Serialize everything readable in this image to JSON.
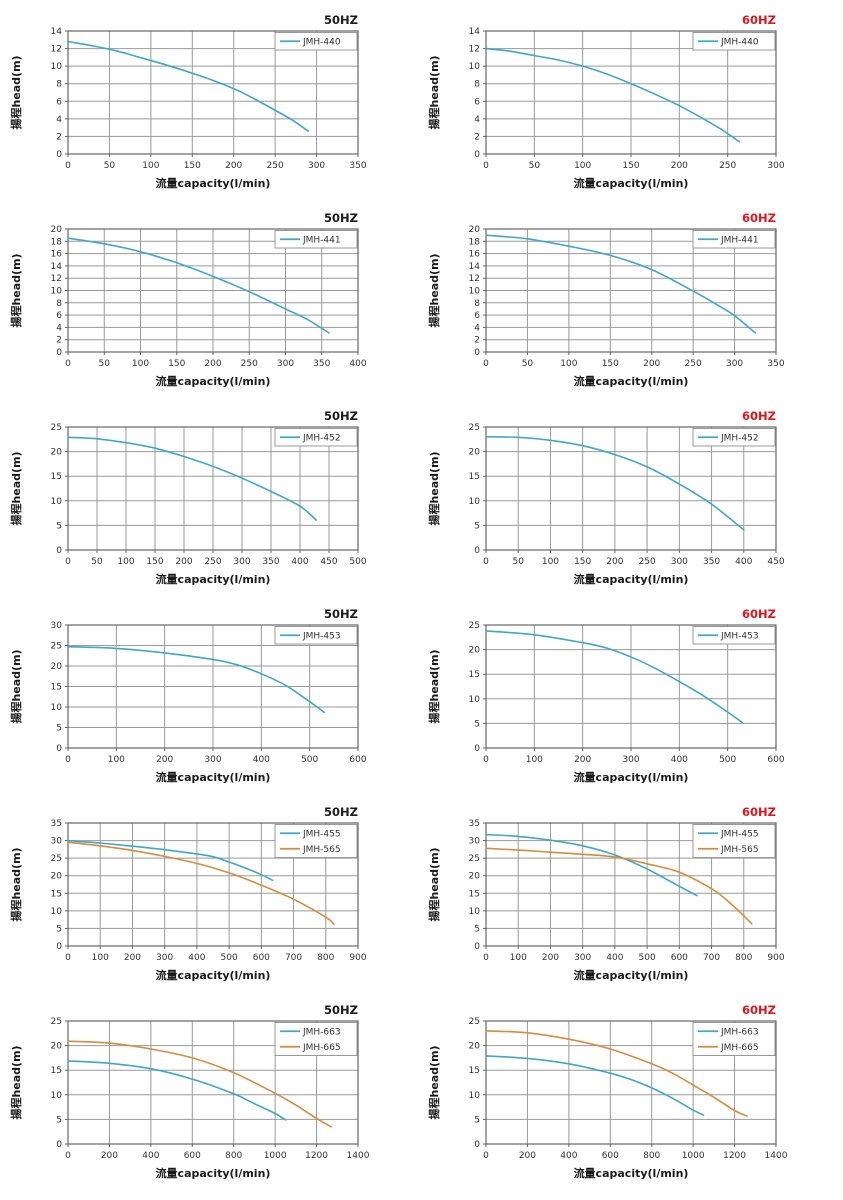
{
  "page": {
    "background": "#ffffff"
  },
  "colors": {
    "series_blue": "#3fa7c9",
    "series_orange": "#d98a3c",
    "title_50hz": "#1a1a1a",
    "title_60hz": "#e2151d",
    "grid_line": "#9a9a9a",
    "plot_border": "#666666",
    "tick_text": "#333333",
    "label_text": "#1a1a1a",
    "legend_border": "#999999",
    "legend_bg": "#ffffff"
  },
  "axis_labels": {
    "xlabel": "流量capacity(l/min)",
    "ylabel": "揚程head(m)"
  },
  "chart_data": [
    {
      "id": "50hz-jmh-440",
      "type": "line",
      "title": "50HZ",
      "title_color": "#1a1a1a",
      "xlabel": "流量capacity(l/min)",
      "ylabel": "揚程head(m)",
      "xlim": [
        0,
        350
      ],
      "xtick_step": 50,
      "ylim": [
        0,
        14
      ],
      "ytick_step": 2,
      "grid": true,
      "legend_position": "top-right",
      "series": [
        {
          "name": "JMH-440",
          "color": "#3fa7c9",
          "points": [
            [
              0,
              12.8
            ],
            [
              30,
              12.3
            ],
            [
              60,
              11.7
            ],
            [
              90,
              10.9
            ],
            [
              120,
              10.1
            ],
            [
              150,
              9.2
            ],
            [
              180,
              8.2
            ],
            [
              210,
              7.0
            ],
            [
              240,
              5.5
            ],
            [
              270,
              3.9
            ],
            [
              290,
              2.6
            ]
          ]
        }
      ]
    },
    {
      "id": "60hz-jmh-440",
      "type": "line",
      "title": "60HZ",
      "title_color": "#e2151d",
      "xlabel": "流量capacity(l/min)",
      "ylabel": "揚程head(m)",
      "xlim": [
        0,
        300
      ],
      "xtick_step": 50,
      "ylim": [
        0,
        14
      ],
      "ytick_step": 2,
      "grid": true,
      "legend_position": "top-right",
      "series": [
        {
          "name": "JMH-440",
          "color": "#3fa7c9",
          "points": [
            [
              0,
              12.0
            ],
            [
              25,
              11.7
            ],
            [
              50,
              11.2
            ],
            [
              75,
              10.7
            ],
            [
              100,
              10.0
            ],
            [
              125,
              9.1
            ],
            [
              150,
              8.0
            ],
            [
              175,
              6.8
            ],
            [
              200,
              5.5
            ],
            [
              225,
              4.0
            ],
            [
              245,
              2.7
            ],
            [
              262,
              1.4
            ]
          ]
        }
      ]
    },
    {
      "id": "50hz-jmh-441",
      "type": "line",
      "title": "50HZ",
      "title_color": "#1a1a1a",
      "xlabel": "流量capacity(l/min)",
      "ylabel": "揚程head(m)",
      "xlim": [
        0,
        400
      ],
      "xtick_step": 50,
      "ylim": [
        0,
        20
      ],
      "ytick_step": 2,
      "grid": true,
      "legend_position": "top-right",
      "series": [
        {
          "name": "JMH-441",
          "color": "#3fa7c9",
          "points": [
            [
              0,
              18.5
            ],
            [
              50,
              17.6
            ],
            [
              100,
              16.3
            ],
            [
              150,
              14.5
            ],
            [
              200,
              12.3
            ],
            [
              250,
              9.8
            ],
            [
              300,
              7.0
            ],
            [
              330,
              5.3
            ],
            [
              360,
              3.1
            ]
          ]
        }
      ]
    },
    {
      "id": "60hz-jmh-441",
      "type": "line",
      "title": "60HZ",
      "title_color": "#e2151d",
      "xlabel": "流量capacity(l/min)",
      "ylabel": "揚程head(m)",
      "xlim": [
        0,
        350
      ],
      "xtick_step": 50,
      "ylim": [
        0,
        20
      ],
      "ytick_step": 2,
      "grid": true,
      "legend_position": "top-right",
      "series": [
        {
          "name": "JMH-441",
          "color": "#3fa7c9",
          "points": [
            [
              0,
              19.0
            ],
            [
              50,
              18.4
            ],
            [
              100,
              17.2
            ],
            [
              150,
              15.7
            ],
            [
              200,
              13.4
            ],
            [
              250,
              9.9
            ],
            [
              280,
              7.6
            ],
            [
              300,
              5.9
            ],
            [
              325,
              3.1
            ]
          ]
        }
      ]
    },
    {
      "id": "50hz-jmh-452",
      "type": "line",
      "title": "50HZ",
      "title_color": "#1a1a1a",
      "xlabel": "流量capacity(l/min)",
      "ylabel": "揚程head(m)",
      "xlim": [
        0,
        500
      ],
      "xtick_step": 50,
      "ylim": [
        0,
        25
      ],
      "ytick_step": 5,
      "grid": true,
      "legend_position": "top-right",
      "series": [
        {
          "name": "JMH-452",
          "color": "#3fa7c9",
          "points": [
            [
              0,
              22.9
            ],
            [
              50,
              22.6
            ],
            [
              100,
              21.8
            ],
            [
              150,
              20.7
            ],
            [
              200,
              19.0
            ],
            [
              250,
              17.0
            ],
            [
              300,
              14.6
            ],
            [
              350,
              11.9
            ],
            [
              400,
              8.9
            ],
            [
              428,
              6.1
            ]
          ]
        }
      ]
    },
    {
      "id": "60hz-jmh-452",
      "type": "line",
      "title": "60HZ",
      "title_color": "#e2151d",
      "xlabel": "流量capacity(l/min)",
      "ylabel": "揚程head(m)",
      "xlim": [
        0,
        450
      ],
      "xtick_step": 50,
      "ylim": [
        0,
        25
      ],
      "ytick_step": 5,
      "grid": true,
      "legend_position": "top-right",
      "series": [
        {
          "name": "JMH-452",
          "color": "#3fa7c9",
          "points": [
            [
              0,
              23.0
            ],
            [
              50,
              22.9
            ],
            [
              100,
              22.3
            ],
            [
              150,
              21.2
            ],
            [
              200,
              19.4
            ],
            [
              250,
              16.9
            ],
            [
              300,
              13.4
            ],
            [
              350,
              9.3
            ],
            [
              400,
              4.1
            ]
          ]
        }
      ]
    },
    {
      "id": "50hz-jmh-453",
      "type": "line",
      "title": "50HZ",
      "title_color": "#1a1a1a",
      "xlabel": "流量capacity(l/min)",
      "ylabel": "揚程head(m)",
      "xlim": [
        0,
        600
      ],
      "xtick_step": 100,
      "ylim": [
        0,
        30
      ],
      "ytick_step": 5,
      "grid": true,
      "legend_position": "top-right",
      "series": [
        {
          "name": "JMH-453",
          "color": "#3fa7c9",
          "points": [
            [
              0,
              24.7
            ],
            [
              100,
              24.3
            ],
            [
              200,
              23.2
            ],
            [
              300,
              21.6
            ],
            [
              350,
              20.3
            ],
            [
              400,
              18.1
            ],
            [
              450,
              15.3
            ],
            [
              500,
              11.3
            ],
            [
              530,
              8.7
            ]
          ]
        }
      ]
    },
    {
      "id": "60hz-jmh-453",
      "type": "line",
      "title": "60HZ",
      "title_color": "#e2151d",
      "xlabel": "流量capacity(l/min)",
      "ylabel": "揚程head(m)",
      "xlim": [
        0,
        600
      ],
      "xtick_step": 100,
      "ylim": [
        0,
        25
      ],
      "ytick_step": 5,
      "grid": true,
      "legend_position": "top-right",
      "series": [
        {
          "name": "JMH-453",
          "color": "#3fa7c9",
          "points": [
            [
              0,
              23.8
            ],
            [
              100,
              23.0
            ],
            [
              200,
              21.4
            ],
            [
              250,
              20.3
            ],
            [
              300,
              18.5
            ],
            [
              350,
              16.2
            ],
            [
              400,
              13.5
            ],
            [
              450,
              10.6
            ],
            [
              500,
              7.3
            ],
            [
              530,
              5.2
            ]
          ]
        }
      ]
    },
    {
      "id": "50hz-jmh-455-565",
      "type": "line",
      "title": "50HZ",
      "title_color": "#1a1a1a",
      "xlabel": "流量capacity(l/min)",
      "ylabel": "揚程head(m)",
      "xlim": [
        0,
        900
      ],
      "xtick_step": 100,
      "ylim": [
        0,
        35
      ],
      "ytick_step": 5,
      "grid": true,
      "legend_position": "top-right",
      "series": [
        {
          "name": "JMH-455",
          "color": "#3fa7c9",
          "points": [
            [
              0,
              30.0
            ],
            [
              100,
              29.3
            ],
            [
              200,
              28.4
            ],
            [
              300,
              27.4
            ],
            [
              400,
              26.2
            ],
            [
              450,
              25.4
            ],
            [
              500,
              23.9
            ],
            [
              550,
              22.2
            ],
            [
              600,
              20.3
            ],
            [
              635,
              18.7
            ]
          ]
        },
        {
          "name": "JMH-565",
          "color": "#d98a3c",
          "points": [
            [
              0,
              29.5
            ],
            [
              100,
              28.5
            ],
            [
              200,
              27.2
            ],
            [
              300,
              25.5
            ],
            [
              400,
              23.5
            ],
            [
              500,
              20.8
            ],
            [
              600,
              17.3
            ],
            [
              700,
              13.3
            ],
            [
              800,
              8.2
            ],
            [
              825,
              6.2
            ]
          ]
        }
      ]
    },
    {
      "id": "60hz-jmh-455-565",
      "type": "line",
      "title": "60HZ",
      "title_color": "#e2151d",
      "xlabel": "流量capacity(l/min)",
      "ylabel": "揚程head(m)",
      "xlim": [
        0,
        900
      ],
      "xtick_step": 100,
      "ylim": [
        0,
        35
      ],
      "ytick_step": 5,
      "grid": true,
      "legend_position": "top-right",
      "series": [
        {
          "name": "JMH-455",
          "color": "#3fa7c9",
          "points": [
            [
              0,
              31.7
            ],
            [
              100,
              31.2
            ],
            [
              200,
              30.1
            ],
            [
              300,
              28.5
            ],
            [
              400,
              25.9
            ],
            [
              500,
              21.9
            ],
            [
              600,
              17.0
            ],
            [
              655,
              14.3
            ]
          ]
        },
        {
          "name": "JMH-565",
          "color": "#d98a3c",
          "points": [
            [
              0,
              27.8
            ],
            [
              100,
              27.3
            ],
            [
              200,
              26.7
            ],
            [
              300,
              26.1
            ],
            [
              400,
              25.3
            ],
            [
              500,
              23.4
            ],
            [
              600,
              21.0
            ],
            [
              700,
              16.3
            ],
            [
              750,
              12.8
            ],
            [
              800,
              8.6
            ],
            [
              825,
              6.3
            ]
          ]
        }
      ]
    },
    {
      "id": "50hz-jmh-663-665",
      "type": "line",
      "title": "50HZ",
      "title_color": "#1a1a1a",
      "xlabel": "流量capacity(l/min)",
      "ylabel": "揚程head(m)",
      "xlim": [
        0,
        1400
      ],
      "xtick_step": 200,
      "ylim": [
        0,
        25
      ],
      "ytick_step": 5,
      "grid": true,
      "legend_position": "top-right",
      "series": [
        {
          "name": "JMH-663",
          "color": "#3fa7c9",
          "points": [
            [
              0,
              16.9
            ],
            [
              200,
              16.4
            ],
            [
              400,
              15.3
            ],
            [
              600,
              13.2
            ],
            [
              800,
              10.2
            ],
            [
              900,
              8.2
            ],
            [
              1000,
              6.2
            ],
            [
              1050,
              4.9
            ]
          ]
        },
        {
          "name": "JMH-665",
          "color": "#d98a3c",
          "points": [
            [
              0,
              20.9
            ],
            [
              200,
              20.5
            ],
            [
              400,
              19.3
            ],
            [
              600,
              17.5
            ],
            [
              800,
              14.5
            ],
            [
              1000,
              10.3
            ],
            [
              1100,
              7.9
            ],
            [
              1200,
              5.2
            ],
            [
              1270,
              3.5
            ]
          ]
        }
      ]
    },
    {
      "id": "60hz-jmh-663-665",
      "type": "line",
      "title": "60HZ",
      "title_color": "#e2151d",
      "xlabel": "流量capacity(l/min)",
      "ylabel": "揚程head(m)",
      "xlim": [
        0,
        1400
      ],
      "xtick_step": 200,
      "ylim": [
        0,
        25
      ],
      "ytick_step": 5,
      "grid": true,
      "legend_position": "top-right",
      "series": [
        {
          "name": "JMH-663",
          "color": "#3fa7c9",
          "points": [
            [
              0,
              17.9
            ],
            [
              200,
              17.4
            ],
            [
              400,
              16.3
            ],
            [
              600,
              14.4
            ],
            [
              700,
              13.1
            ],
            [
              800,
              11.4
            ],
            [
              900,
              9.3
            ],
            [
              1000,
              6.9
            ],
            [
              1050,
              5.9
            ]
          ]
        },
        {
          "name": "JMH-665",
          "color": "#d98a3c",
          "points": [
            [
              0,
              23.0
            ],
            [
              200,
              22.6
            ],
            [
              400,
              21.3
            ],
            [
              600,
              19.3
            ],
            [
              800,
              16.3
            ],
            [
              900,
              14.4
            ],
            [
              1000,
              12.0
            ],
            [
              1100,
              9.5
            ],
            [
              1200,
              6.8
            ],
            [
              1260,
              5.7
            ]
          ]
        }
      ]
    }
  ]
}
